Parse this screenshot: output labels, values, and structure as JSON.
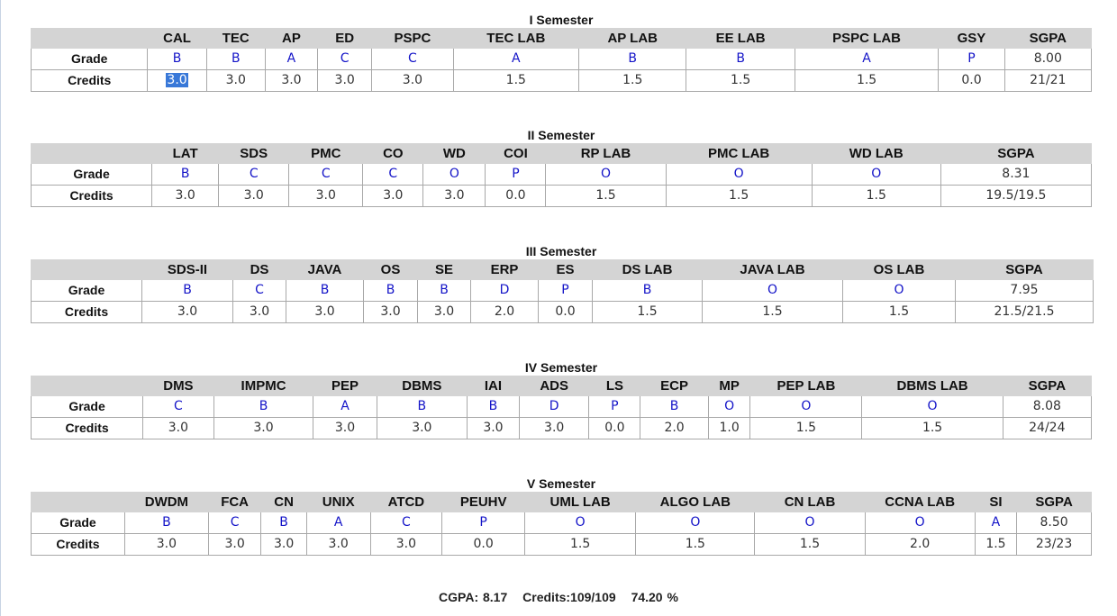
{
  "semesters": [
    {
      "title": "I Semester",
      "subjects": [
        "CAL",
        "TEC",
        "AP",
        "ED",
        "PSPC",
        "TEC LAB",
        "AP LAB",
        "EE LAB",
        "PSPC LAB",
        "GSY"
      ],
      "grades": [
        "B",
        "B",
        "A",
        "C",
        "C",
        "A",
        "B",
        "B",
        "A",
        "P"
      ],
      "credits": [
        "3.0",
        "3.0",
        "3.0",
        "3.0",
        "3.0",
        "1.5",
        "1.5",
        "1.5",
        "1.5",
        "0.0"
      ],
      "sgpa": "8.00",
      "sgpa_credits": "21/21"
    },
    {
      "title": "II Semester",
      "subjects": [
        "LAT",
        "SDS",
        "PMC",
        "CO",
        "WD",
        "COI",
        "RP LAB",
        "PMC LAB",
        "WD LAB"
      ],
      "grades": [
        "B",
        "C",
        "C",
        "C",
        "O",
        "P",
        "O",
        "O",
        "O"
      ],
      "credits": [
        "3.0",
        "3.0",
        "3.0",
        "3.0",
        "3.0",
        "0.0",
        "1.5",
        "1.5",
        "1.5"
      ],
      "sgpa": "8.31",
      "sgpa_credits": "19.5/19.5"
    },
    {
      "title": "III Semester",
      "subjects": [
        "SDS-II",
        "DS",
        "JAVA",
        "OS",
        "SE",
        "ERP",
        "ES",
        "DS LAB",
        "JAVA LAB",
        "OS LAB"
      ],
      "grades": [
        "B",
        "C",
        "B",
        "B",
        "B",
        "D",
        "P",
        "B",
        "O",
        "O"
      ],
      "credits": [
        "3.0",
        "3.0",
        "3.0",
        "3.0",
        "3.0",
        "2.0",
        "0.0",
        "1.5",
        "1.5",
        "1.5"
      ],
      "sgpa": "7.95",
      "sgpa_credits": "21.5/21.5"
    },
    {
      "title": "IV Semester",
      "subjects": [
        "DMS",
        "IMPMC",
        "PEP",
        "DBMS",
        "IAI",
        "ADS",
        "LS",
        "ECP",
        "MP",
        "PEP LAB",
        "DBMS LAB"
      ],
      "grades": [
        "C",
        "B",
        "A",
        "B",
        "B",
        "D",
        "P",
        "B",
        "O",
        "O",
        "O"
      ],
      "credits": [
        "3.0",
        "3.0",
        "3.0",
        "3.0",
        "3.0",
        "3.0",
        "0.0",
        "2.0",
        "1.0",
        "1.5",
        "1.5"
      ],
      "sgpa": "8.08",
      "sgpa_credits": "24/24"
    },
    {
      "title": "V Semester",
      "subjects": [
        "DWDM",
        "FCA",
        "CN",
        "UNIX",
        "ATCD",
        "PEUHV",
        "UML LAB",
        "ALGO LAB",
        "CN LAB",
        "CCNA LAB",
        "SI"
      ],
      "grades": [
        "B",
        "C",
        "B",
        "A",
        "C",
        "P",
        "O",
        "O",
        "O",
        "O",
        "A"
      ],
      "credits": [
        "3.0",
        "3.0",
        "3.0",
        "3.0",
        "3.0",
        "0.0",
        "1.5",
        "1.5",
        "1.5",
        "2.0",
        "1.5"
      ],
      "sgpa": "8.50",
      "sgpa_credits": "23/23"
    }
  ],
  "labels": {
    "grade": "Grade",
    "credits": "Credits",
    "sgpa": "SGPA"
  },
  "summary": {
    "cgpa": "CGPA: 8.17",
    "credits": "Credits:109/109",
    "percentage": "74.20 %"
  },
  "colors": {
    "grade_text": "#1414c8",
    "header_bg": "#d4d4d4",
    "selection": "#3878d8"
  }
}
